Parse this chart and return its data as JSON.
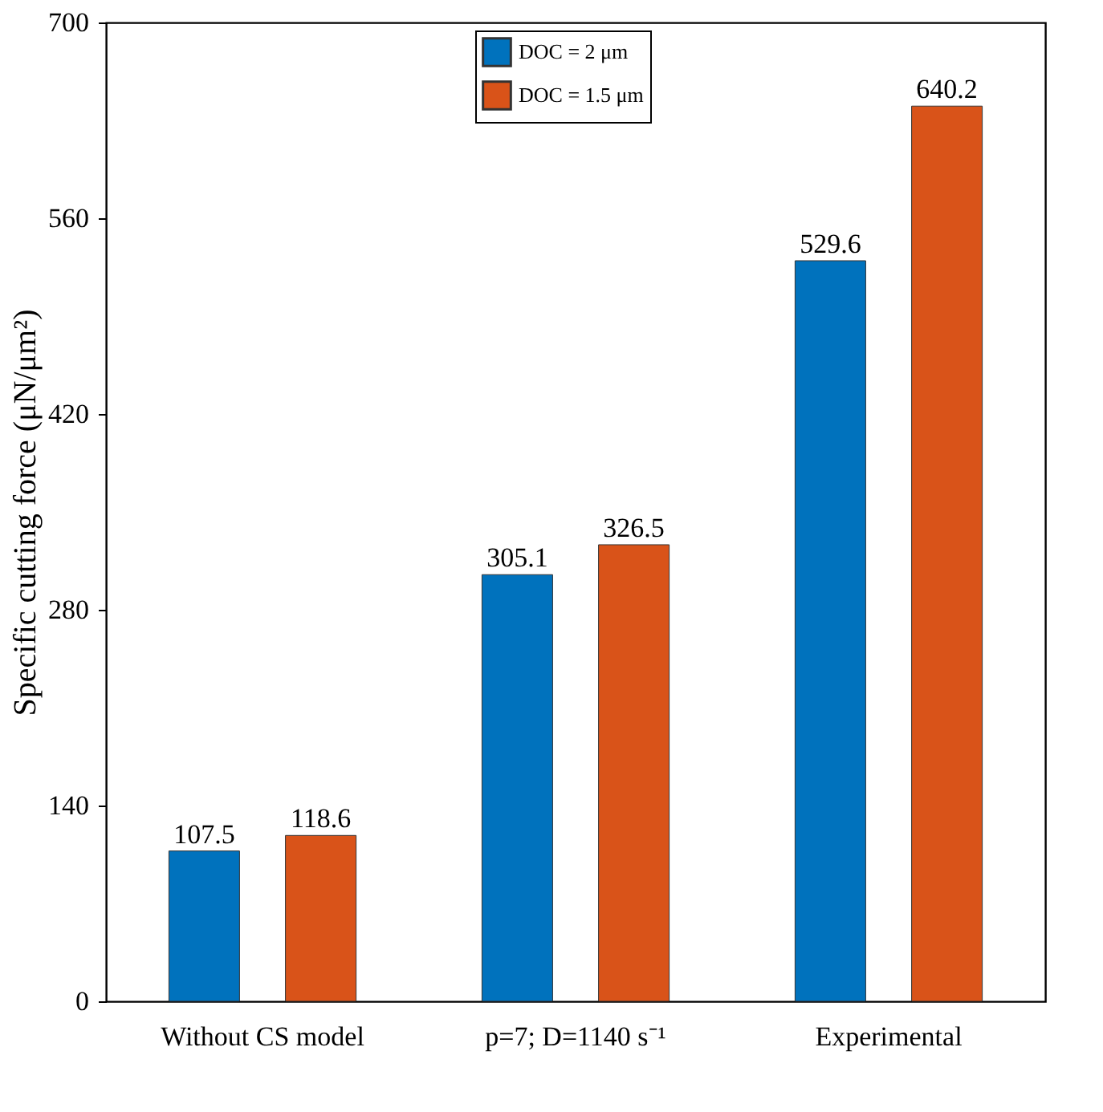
{
  "chart_data": {
    "type": "bar",
    "ylabel": "Specific cutting force (μN/μm²)",
    "categories": [
      "Without CS model",
      "p=7; D=1140 s⁻¹",
      "Experimental"
    ],
    "series": [
      {
        "name": "DOC = 2 μm",
        "color": "#0072bd",
        "values": [
          107.5,
          305.1,
          529.6
        ]
      },
      {
        "name": "DOC = 1.5 μm",
        "color": "#d95319",
        "values": [
          118.6,
          326.5,
          640.2
        ]
      }
    ],
    "ylim": [
      0,
      700
    ],
    "yticks": [
      0,
      140,
      280,
      420,
      560,
      700
    ],
    "grid": false,
    "legend": "top",
    "data_labels": true
  }
}
